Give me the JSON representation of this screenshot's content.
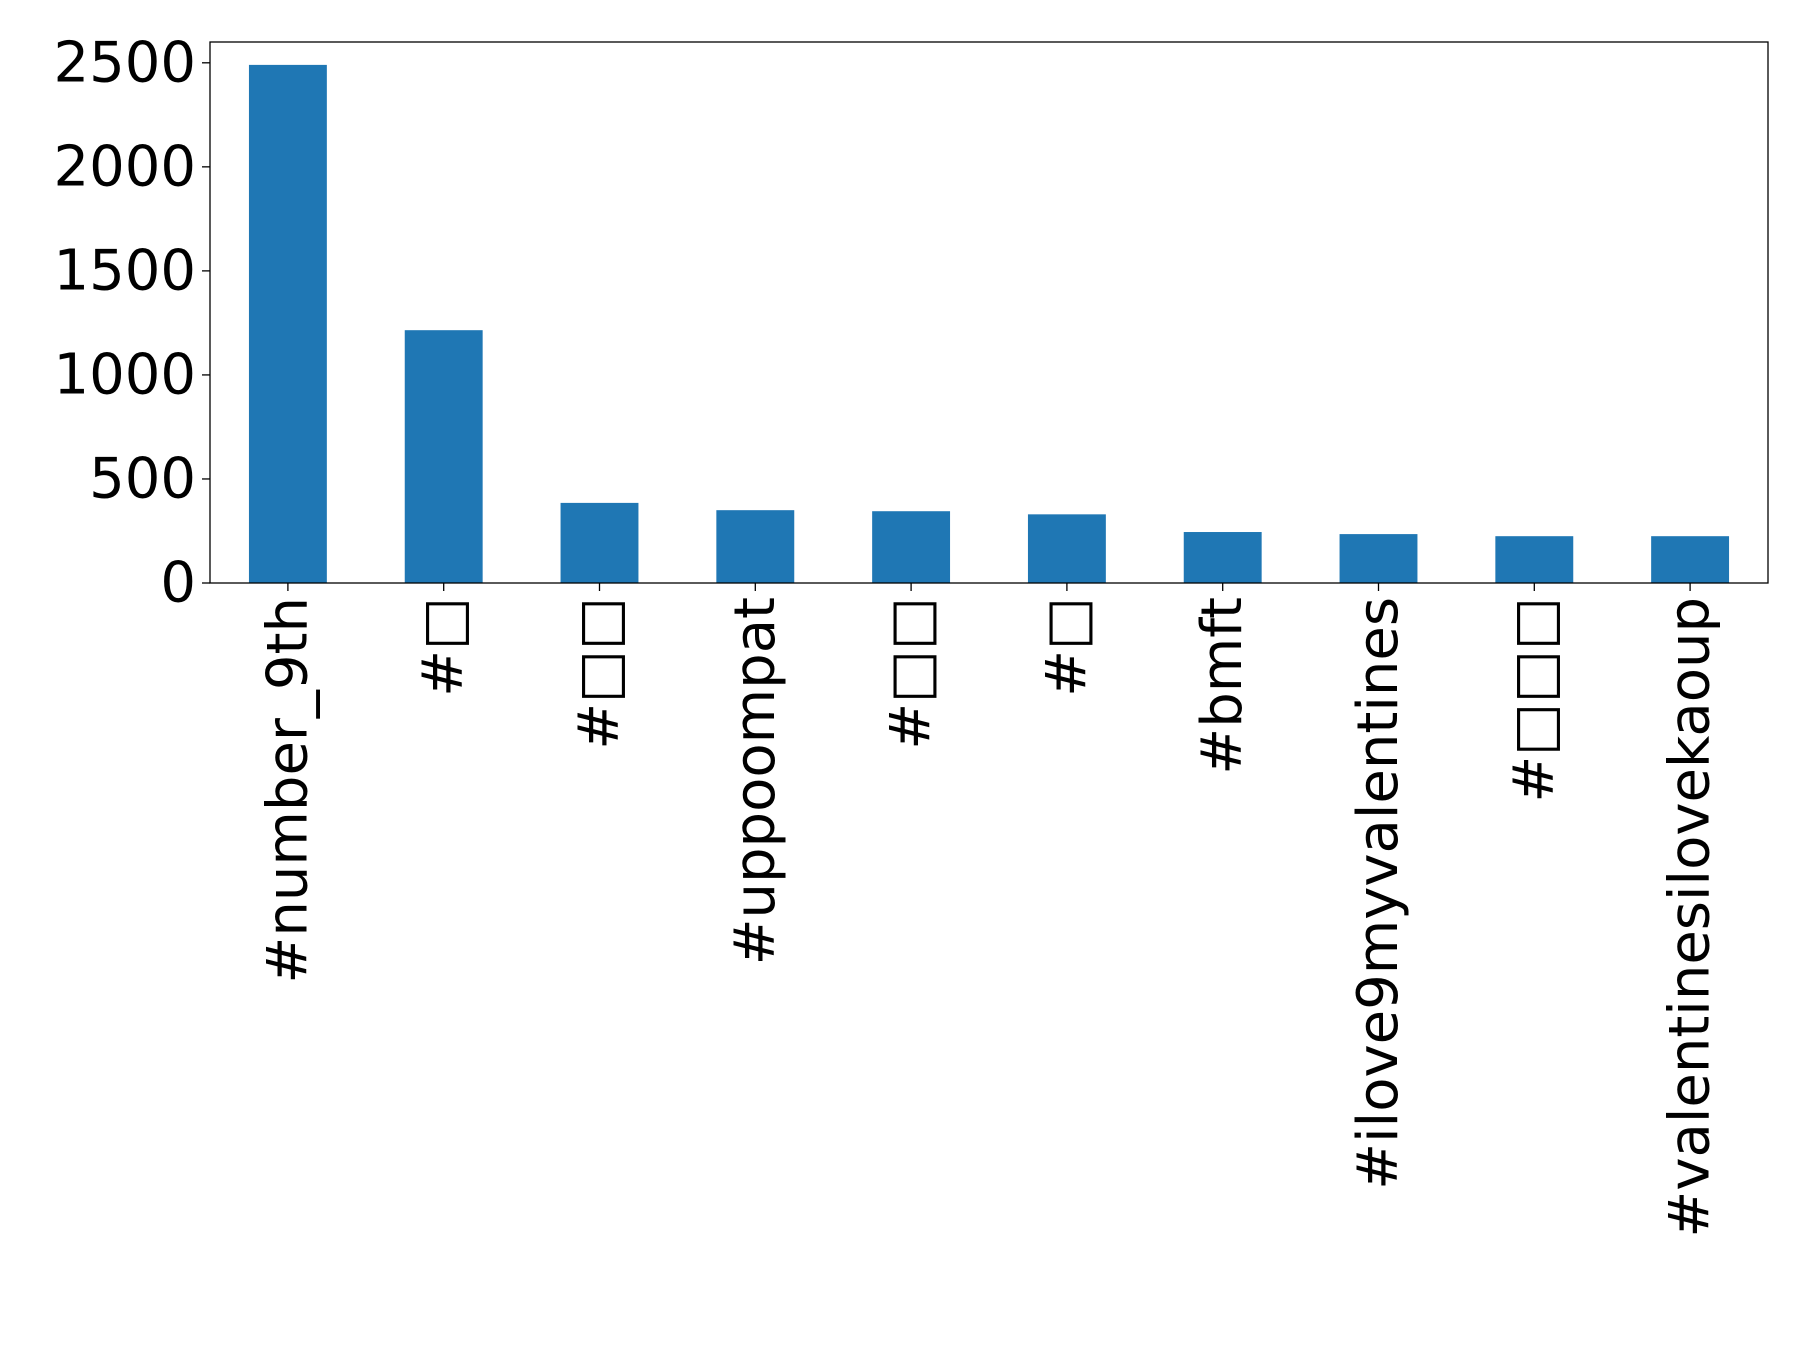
{
  "chart_data": {
    "type": "bar",
    "title": "",
    "xlabel": "",
    "ylabel": "",
    "categories": [
      "#number_9th",
      "#□",
      "#□□",
      "#uppoompat",
      "#□□",
      "#□",
      "#bmft",
      "#ilove9myvalentines",
      "#□□□",
      "#valentinesilovekaoup"
    ],
    "values": [
      2490,
      1215,
      385,
      350,
      345,
      330,
      245,
      235,
      225,
      225
    ],
    "yticks": [
      "0",
      "500",
      "1000",
      "1500",
      "2000",
      "2500"
    ],
    "ylim": [
      0,
      2600
    ],
    "grid": false,
    "legend": "none",
    "colors": {
      "bar": "#1f77b4",
      "axis": "#000000",
      "background": "#ffffff"
    }
  }
}
